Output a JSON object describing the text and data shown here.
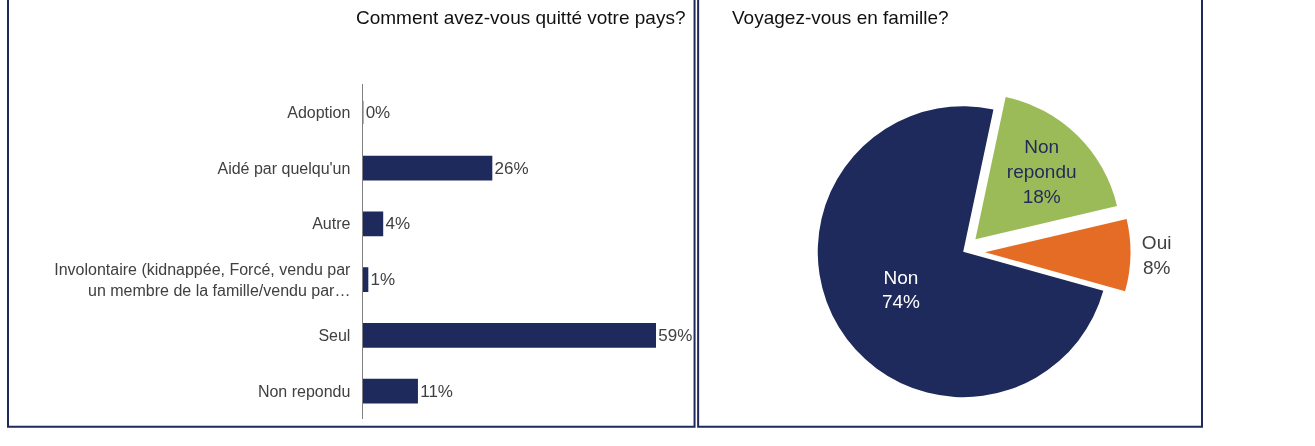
{
  "chart_data": [
    {
      "type": "bar",
      "orientation": "horizontal",
      "title": "Comment avez-vous quitté votre pays?",
      "categories": [
        "Adoption",
        "Aidé par quelqu'un",
        "Autre",
        "Involontaire (kidnappée, Forcé, vendu par un membre de la famille/vendu par…",
        "Seul",
        "Non repondu"
      ],
      "values": [
        0,
        26,
        4,
        1,
        59,
        11
      ],
      "color": "#1f2a5c",
      "value_labels": [
        "0%",
        "26%",
        "4%",
        "1%",
        "59%",
        "11%"
      ]
    },
    {
      "type": "pie",
      "title": "Voyagez-vous en famille?",
      "categories": [
        "Non repondu",
        "Oui",
        "Non"
      ],
      "values": [
        18,
        8,
        74
      ],
      "colors": [
        "#9bbb59",
        "#e46c25",
        "#1f2a5c"
      ],
      "value_labels": [
        "18%",
        "8%",
        "74%"
      ]
    }
  ]
}
